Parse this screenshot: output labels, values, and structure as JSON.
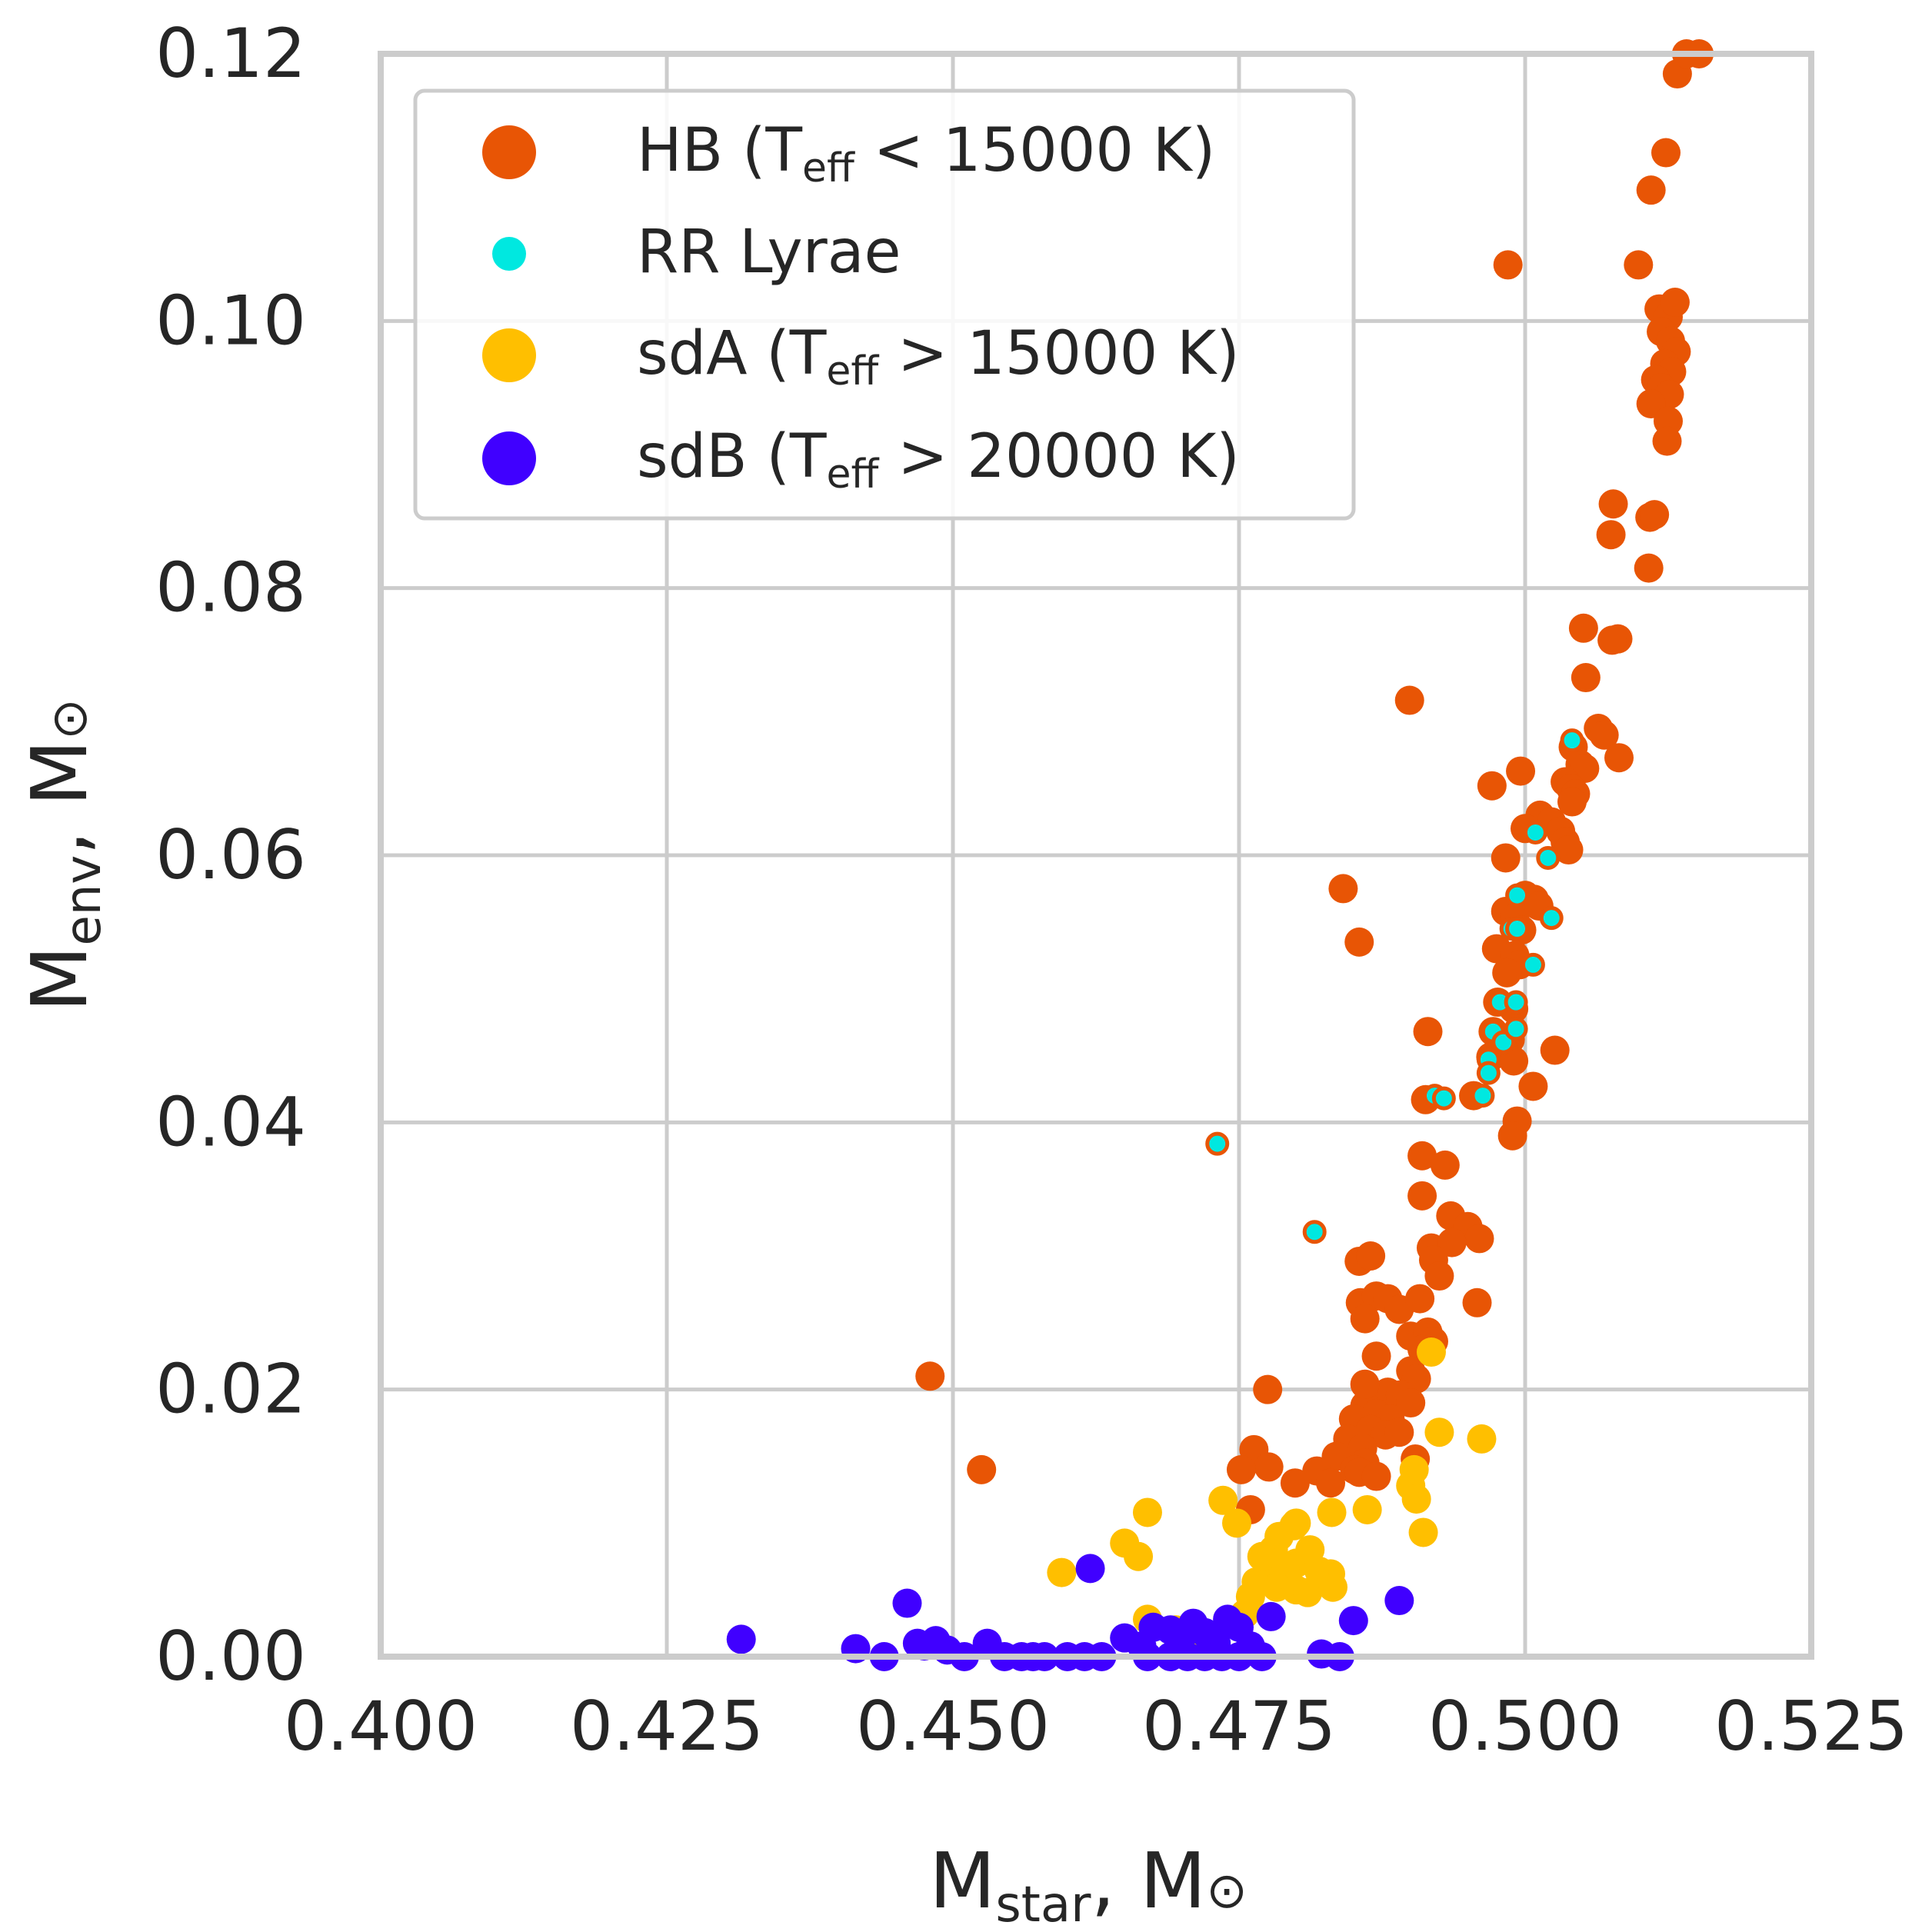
{
  "chart_data": {
    "type": "scatter",
    "xlabel": {
      "main": "M",
      "sub": "star",
      "tail": ", M",
      "sym": "⊙"
    },
    "ylabel": {
      "main": "M",
      "sub": "env",
      "tail": ", M",
      "sym": "⊙"
    },
    "xlim": [
      0.4,
      0.525
    ],
    "ylim": [
      0.0,
      0.12
    ],
    "xticks": [
      "0.400",
      "0.425",
      "0.450",
      "0.475",
      "0.500",
      "0.525"
    ],
    "yticks": [
      "0.00",
      "0.02",
      "0.04",
      "0.06",
      "0.08",
      "0.10",
      "0.12"
    ],
    "grid": true,
    "legend_position": "top-left",
    "legend": [
      {
        "pre": "HB (T",
        "sub": "eff",
        "post": " < 15000 K)",
        "color": "#e85505"
      },
      {
        "pre": "RR Lyrae",
        "sub": "",
        "post": "",
        "color": "#00e8e0"
      },
      {
        "pre": "sdA (T",
        "sub": "eff",
        "post": " > 15000 K)",
        "color": "#ffbf00"
      },
      {
        "pre": "sdB (T",
        "sub": "eff",
        "post": " > 20000 K)",
        "color": "#4000ff"
      }
    ],
    "series": [
      {
        "name": "HB",
        "color": "#e85505",
        "points": [
          [
            0.4985,
            0.1042
          ],
          [
            0.5099,
            0.1042
          ],
          [
            0.5133,
            0.1185
          ],
          [
            0.5141,
            0.12
          ],
          [
            0.5152,
            0.12
          ],
          [
            0.5123,
            0.1126
          ],
          [
            0.511,
            0.1098
          ],
          [
            0.5117,
            0.1009
          ],
          [
            0.5125,
            0.1003
          ],
          [
            0.5131,
            0.1014
          ],
          [
            0.5119,
            0.0992
          ],
          [
            0.5127,
            0.0985
          ],
          [
            0.5132,
            0.0977
          ],
          [
            0.5122,
            0.0968
          ],
          [
            0.5128,
            0.0962
          ],
          [
            0.5114,
            0.0956
          ],
          [
            0.5119,
            0.095
          ],
          [
            0.5126,
            0.0945
          ],
          [
            0.511,
            0.0938
          ],
          [
            0.5125,
            0.0925
          ],
          [
            0.5124,
            0.091
          ],
          [
            0.5077,
            0.0863
          ],
          [
            0.5075,
            0.084
          ],
          [
            0.5109,
            0.0853
          ],
          [
            0.5113,
            0.0855
          ],
          [
            0.5108,
            0.0815
          ],
          [
            0.5051,
            0.077
          ],
          [
            0.5081,
            0.0762
          ],
          [
            0.5076,
            0.0761
          ],
          [
            0.5053,
            0.0733
          ],
          [
            0.5064,
            0.0695
          ],
          [
            0.5069,
            0.069
          ],
          [
            0.5082,
            0.0673
          ],
          [
            0.5042,
            0.0681
          ],
          [
            0.5048,
            0.0668
          ],
          [
            0.5052,
            0.0665
          ],
          [
            0.5035,
            0.0655
          ],
          [
            0.504,
            0.065
          ],
          [
            0.5044,
            0.0646
          ],
          [
            0.5041,
            0.064
          ],
          [
            0.5013,
            0.063
          ],
          [
            0.5023,
            0.0625
          ],
          [
            0.5031,
            0.0618
          ],
          [
            0.5,
            0.062
          ],
          [
            0.5035,
            0.061
          ],
          [
            0.5038,
            0.0604
          ],
          [
            0.4983,
            0.0598
          ],
          [
            0.5,
            0.057
          ],
          [
            0.5008,
            0.0567
          ],
          [
            0.4983,
            0.0558
          ],
          [
            0.4991,
            0.0553
          ],
          [
            0.5012,
            0.0562
          ],
          [
            0.4997,
            0.0544
          ],
          [
            0.4975,
            0.053
          ],
          [
            0.4991,
            0.0525
          ],
          [
            0.4995,
            0.0518
          ],
          [
            0.4984,
            0.0512
          ],
          [
            0.4976,
            0.049
          ],
          [
            0.499,
            0.0485
          ],
          [
            0.4972,
            0.0468
          ],
          [
            0.4987,
            0.0462
          ],
          [
            0.498,
            0.0457
          ],
          [
            0.497,
            0.0449
          ],
          [
            0.499,
            0.0446
          ],
          [
            0.5026,
            0.0454
          ],
          [
            0.5007,
            0.0427
          ],
          [
            0.4993,
            0.0401
          ],
          [
            0.4989,
            0.039
          ],
          [
            0.4971,
            0.0652
          ],
          [
            0.4996,
            0.0663
          ],
          [
            0.4899,
            0.0716
          ],
          [
            0.4841,
            0.0575
          ],
          [
            0.4855,
            0.0535
          ],
          [
            0.4915,
            0.0468
          ],
          [
            0.4955,
            0.042
          ],
          [
            0.4913,
            0.0417
          ],
          [
            0.491,
            0.0375
          ],
          [
            0.493,
            0.0368
          ],
          [
            0.491,
            0.0345
          ],
          [
            0.4935,
            0.033
          ],
          [
            0.495,
            0.0322
          ],
          [
            0.496,
            0.0313
          ],
          [
            0.4918,
            0.0306
          ],
          [
            0.4936,
            0.031
          ],
          [
            0.492,
            0.0297
          ],
          [
            0.4925,
            0.0285
          ],
          [
            0.4958,
            0.0265
          ],
          [
            0.4855,
            0.0296
          ],
          [
            0.4865,
            0.03
          ],
          [
            0.4856,
            0.0265
          ],
          [
            0.487,
            0.027
          ],
          [
            0.488,
            0.0268
          ],
          [
            0.489,
            0.026
          ],
          [
            0.4908,
            0.0268
          ],
          [
            0.486,
            0.0253
          ],
          [
            0.49,
            0.024
          ],
          [
            0.4915,
            0.0243
          ],
          [
            0.492,
            0.0236
          ],
          [
            0.491,
            0.023
          ],
          [
            0.487,
            0.0225
          ],
          [
            0.49,
            0.0214
          ],
          [
            0.4905,
            0.0208
          ],
          [
            0.488,
            0.0198
          ],
          [
            0.4891,
            0.0196
          ],
          [
            0.49,
            0.019
          ],
          [
            0.486,
            0.0188
          ],
          [
            0.487,
            0.0182
          ],
          [
            0.4882,
            0.0178
          ],
          [
            0.485,
            0.0178
          ],
          [
            0.4865,
            0.017
          ],
          [
            0.4878,
            0.0166
          ],
          [
            0.489,
            0.0168
          ],
          [
            0.4845,
            0.0163
          ],
          [
            0.4858,
            0.0156
          ],
          [
            0.4835,
            0.015
          ],
          [
            0.486,
            0.0145
          ],
          [
            0.4818,
            0.0139
          ],
          [
            0.483,
            0.013
          ],
          [
            0.4851,
            0.014
          ],
          [
            0.4855,
            0.0138
          ],
          [
            0.4904,
            0.0148
          ],
          [
            0.487,
            0.0135
          ],
          [
            0.4775,
            0.02
          ],
          [
            0.486,
            0.0204
          ],
          [
            0.4763,
            0.0155
          ],
          [
            0.4776,
            0.0142
          ],
          [
            0.4752,
            0.014
          ],
          [
            0.4799,
            0.013
          ],
          [
            0.476,
            0.011
          ],
          [
            0.448,
            0.021
          ],
          [
            0.4525,
            0.014
          ]
        ]
      },
      {
        "name": "RR Lyrae",
        "color": "#00e8e0",
        "points": [
          [
            0.5041,
            0.0686
          ],
          [
            0.5009,
            0.0617
          ],
          [
            0.502,
            0.0598
          ],
          [
            0.4993,
            0.057
          ],
          [
            0.4988,
            0.0545
          ],
          [
            0.4993,
            0.0545
          ],
          [
            0.5023,
            0.0553
          ],
          [
            0.5007,
            0.0518
          ],
          [
            0.4978,
            0.049
          ],
          [
            0.4992,
            0.049
          ],
          [
            0.4972,
            0.0468
          ],
          [
            0.4981,
            0.046
          ],
          [
            0.4992,
            0.047
          ],
          [
            0.4968,
            0.0447
          ],
          [
            0.4968,
            0.0437
          ],
          [
            0.4963,
            0.042
          ],
          [
            0.4921,
            0.042
          ],
          [
            0.4929,
            0.0418
          ],
          [
            0.4816,
            0.0318
          ],
          [
            0.4731,
            0.0384
          ]
        ]
      },
      {
        "name": "sdA",
        "color": "#ffbf00",
        "points": [
          [
            0.4918,
            0.0228
          ],
          [
            0.4925,
            0.0168
          ],
          [
            0.4962,
            0.0163
          ],
          [
            0.4903,
            0.014
          ],
          [
            0.49,
            0.0128
          ],
          [
            0.4905,
            0.0118
          ],
          [
            0.4911,
            0.0093
          ],
          [
            0.4831,
            0.0108
          ],
          [
            0.4862,
            0.011
          ],
          [
            0.4736,
            0.0117
          ],
          [
            0.4748,
            0.01
          ],
          [
            0.4798,
            0.0098
          ],
          [
            0.467,
            0.0108
          ],
          [
            0.465,
            0.0085
          ],
          [
            0.4662,
            0.0075
          ],
          [
            0.4595,
            0.0063
          ],
          [
            0.478,
            0.008
          ],
          [
            0.48,
            0.007
          ],
          [
            0.481,
            0.0072
          ],
          [
            0.479,
            0.0066
          ],
          [
            0.4775,
            0.006
          ],
          [
            0.482,
            0.0064
          ],
          [
            0.483,
            0.0062
          ],
          [
            0.4765,
            0.0056
          ],
          [
            0.4783,
            0.0052
          ],
          [
            0.48,
            0.005
          ],
          [
            0.481,
            0.0048
          ],
          [
            0.476,
            0.0045
          ],
          [
            0.4832,
            0.0052
          ],
          [
            0.467,
            0.0028
          ],
          [
            0.4695,
            0.002
          ],
          [
            0.471,
            0.0015
          ],
          [
            0.4755,
            0.0032
          ],
          [
            0.4785,
            0.009
          ],
          [
            0.48,
            0.01
          ],
          [
            0.477,
            0.0075
          ],
          [
            0.4812,
            0.008
          ]
        ]
      },
      {
        "name": "sdB",
        "color": "#4000ff",
        "points": [
          [
            0.4315,
            0.0013
          ],
          [
            0.446,
            0.004
          ],
          [
            0.4415,
            0.0006
          ],
          [
            0.444,
            0.0
          ],
          [
            0.4469,
            0.001
          ],
          [
            0.4475,
            0.0008
          ],
          [
            0.4485,
            0.0012
          ],
          [
            0.4495,
            0.0005
          ],
          [
            0.451,
            0.0
          ],
          [
            0.453,
            0.001
          ],
          [
            0.4545,
            0.0
          ],
          [
            0.456,
            0.0
          ],
          [
            0.458,
            0.0
          ],
          [
            0.46,
            0.0
          ],
          [
            0.4615,
            0.0
          ],
          [
            0.463,
            0.0
          ],
          [
            0.465,
            0.0014
          ],
          [
            0.4665,
            0.0008
          ],
          [
            0.4675,
            0.0022
          ],
          [
            0.469,
            0.002
          ],
          [
            0.47,
            0.0015
          ],
          [
            0.471,
            0.0025
          ],
          [
            0.472,
            0.0018
          ],
          [
            0.473,
            0.001
          ],
          [
            0.474,
            0.0028
          ],
          [
            0.475,
            0.0022
          ],
          [
            0.476,
            0.0008
          ],
          [
            0.467,
            0.0
          ],
          [
            0.469,
            0.0
          ],
          [
            0.4705,
            0.0
          ],
          [
            0.472,
            0.0
          ],
          [
            0.4735,
            0.0
          ],
          [
            0.475,
            0.0
          ],
          [
            0.477,
            0.0
          ],
          [
            0.4778,
            0.003
          ],
          [
            0.4822,
            0.0002
          ],
          [
            0.4838,
            0.0
          ],
          [
            0.485,
            0.0027
          ],
          [
            0.489,
            0.0042
          ],
          [
            0.462,
            0.0066
          ],
          [
            0.457,
            0.0
          ]
        ]
      }
    ]
  }
}
